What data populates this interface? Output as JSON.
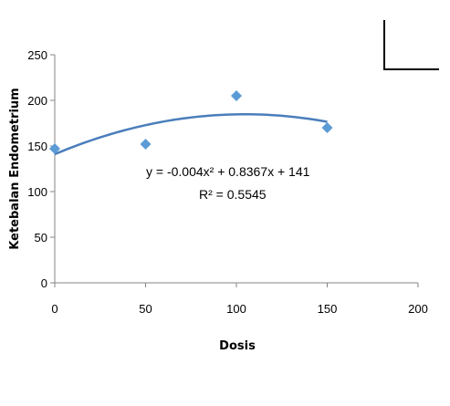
{
  "chart_data": {
    "type": "scatter",
    "xlabel": "Dosis",
    "ylabel": "Ketebalan Endometrium",
    "xlim": [
      0,
      200
    ],
    "ylim": [
      0,
      250
    ],
    "x_ticks": [
      0,
      50,
      100,
      150,
      200
    ],
    "y_ticks": [
      0,
      50,
      100,
      150,
      200,
      250
    ],
    "grid": false,
    "series": [
      {
        "x": [
          0,
          50,
          100,
          150
        ],
        "y": [
          147,
          152,
          205,
          170
        ],
        "marker": "diamond",
        "color": "#5b9bd5"
      }
    ],
    "trendline": {
      "type": "polynomial",
      "coefficients": [
        -0.004,
        0.8367,
        141
      ],
      "color": "#4a7ebb"
    },
    "annotations": {
      "equation": "y = -0.004x² + 0.8367x + 141",
      "r_squared": "R² = 0.5545"
    }
  }
}
